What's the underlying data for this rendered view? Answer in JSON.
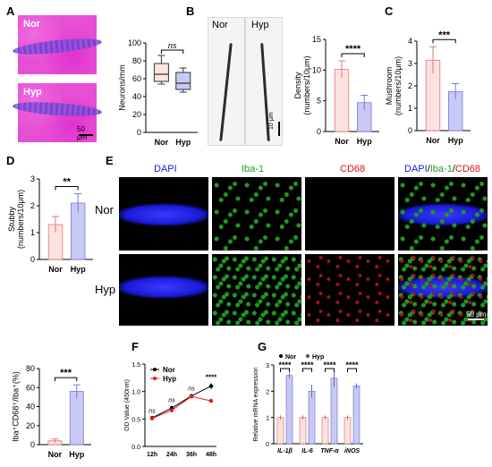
{
  "panels": {
    "a": "A",
    "b": "B",
    "c": "C",
    "d": "D",
    "e": "E",
    "f": "F",
    "g": "G"
  },
  "panelA": {
    "label_top": "Nor",
    "label_bottom": "Hyp",
    "scalebar": "50 μm",
    "chart_title": "ns"
  },
  "panelB": {
    "img_left": "Nor",
    "img_right": "Hyp",
    "scalebar": "10 μm"
  },
  "panelE": {
    "col_titles": {
      "dapi": "DAPI",
      "iba": "Iba-1",
      "cd68": "CD68",
      "m_dapi": "DAPI",
      "m_sep1": "/",
      "m_iba": "Iba-1",
      "m_sep2": "/",
      "m_cd68": "CD68"
    },
    "row_nor": "Nor",
    "row_hyp": "Hyp",
    "scalebar": "50 μm"
  },
  "colors": {
    "nor": "#fde2df",
    "hyp": "#c9c9f5",
    "red": "#e8191b",
    "dapi": "#1a1ad8",
    "iba": "#20a020",
    "cd68": "#e01010"
  },
  "chart_data": [
    {
      "id": "A-box",
      "type": "box",
      "categories": [
        "Nor",
        "Hyp"
      ],
      "ylabel": "Neurons/mm",
      "ylim": [
        0,
        100
      ],
      "yticks": [
        0,
        20,
        40,
        60,
        80,
        100
      ],
      "boxes": [
        {
          "name": "Nor",
          "min": 54,
          "q1": 57,
          "median": 65,
          "q3": 77,
          "max": 86
        },
        {
          "name": "Hyp",
          "min": 45,
          "q1": 48,
          "median": 55,
          "q3": 67,
          "max": 72
        }
      ],
      "annotation": "ns"
    },
    {
      "id": "B-bar",
      "type": "bar",
      "categories": [
        "Nor",
        "Hyp"
      ],
      "values": [
        10.1,
        4.7
      ],
      "errors": [
        1.4,
        1.2
      ],
      "ylabel": "Density\n(numbers/10μm)",
      "ylim": [
        0,
        15
      ],
      "yticks": [
        0,
        5,
        10,
        15
      ],
      "annotation": "****"
    },
    {
      "id": "C-bar",
      "type": "bar",
      "categories": [
        "Nor",
        "Hyp"
      ],
      "values": [
        3.15,
        1.75
      ],
      "errors": [
        0.6,
        0.35
      ],
      "ylabel": "Mushroom\n(numbers/10μm)",
      "ylim": [
        0,
        4
      ],
      "yticks": [
        0,
        1,
        2,
        3,
        4
      ],
      "annotation": "***"
    },
    {
      "id": "D-bar",
      "type": "bar",
      "categories": [
        "Nor",
        "Hyp"
      ],
      "values": [
        1.3,
        2.1
      ],
      "errors": [
        0.3,
        0.35
      ],
      "ylabel": "Stubby\n(numbers/10μm)",
      "ylim": [
        0,
        3
      ],
      "yticks": [
        0,
        1,
        2,
        3
      ],
      "annotation": "**"
    },
    {
      "id": "E-bar",
      "type": "bar",
      "categories": [
        "Nor",
        "Hyp"
      ],
      "values": [
        4,
        56
      ],
      "errors": [
        2,
        7
      ],
      "ylabel": "Iba⁺CD68⁺/Iba⁺(%)",
      "ylim": [
        0,
        80
      ],
      "yticks": [
        0,
        20,
        40,
        60,
        80
      ],
      "annotation": "***"
    },
    {
      "id": "F-line",
      "type": "line",
      "x": [
        "12h",
        "24h",
        "36h",
        "48h"
      ],
      "series": [
        {
          "name": "Nor",
          "values": [
            0.52,
            0.7,
            0.92,
            1.1
          ],
          "errors": [
            0.03,
            0.04,
            0.03,
            0.05
          ]
        },
        {
          "name": "Hyp",
          "values": [
            0.51,
            0.66,
            0.91,
            0.83
          ],
          "errors": [
            0.03,
            0.03,
            0.03,
            0.03
          ]
        }
      ],
      "ylabel": "OD Value (450nm)",
      "ylim": [
        0,
        1.5
      ],
      "yticks": [
        0.0,
        0.5,
        1.0,
        1.5
      ],
      "annotations": [
        "ns",
        "ns",
        "ns",
        "****"
      ],
      "legend": "top-left"
    },
    {
      "id": "G-bar",
      "type": "bar",
      "categories": [
        "IL-1β",
        "IL-6",
        "TNF-α",
        "iNOS"
      ],
      "series": [
        {
          "name": "Nor",
          "values": [
            1.0,
            1.0,
            1.0,
            1.0
          ],
          "errors": [
            0.08,
            0.08,
            0.08,
            0.08
          ]
        },
        {
          "name": "Hyp",
          "values": [
            2.6,
            2.0,
            2.5,
            2.2
          ],
          "errors": [
            0.1,
            0.25,
            0.35,
            0.1
          ]
        }
      ],
      "ylabel": "Relative  mRNA expression",
      "ylim": [
        0,
        3
      ],
      "yticks": [
        0,
        1,
        2,
        3
      ],
      "annotations": [
        "****",
        "****",
        "****",
        "****"
      ],
      "legend": "top"
    }
  ]
}
